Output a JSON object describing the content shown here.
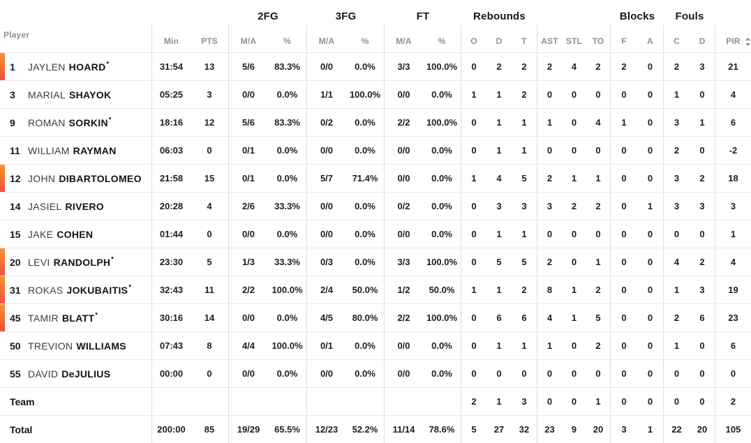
{
  "accent": {
    "on_court_bar_top": "#f8932e",
    "on_court_bar_bottom": "#f04f3c"
  },
  "table": {
    "player_header": "Player",
    "groups": [
      {
        "label": "2FG"
      },
      {
        "label": "3FG"
      },
      {
        "label": "FT"
      },
      {
        "label": "Rebounds"
      },
      {
        "label": "Blocks"
      },
      {
        "label": "Fouls"
      }
    ],
    "columns": [
      {
        "key": "min",
        "label": "Min"
      },
      {
        "key": "pts",
        "label": "PTS"
      },
      {
        "key": "fg2-ma",
        "label": "M/A"
      },
      {
        "key": "fg2-pct",
        "label": "%"
      },
      {
        "key": "fg3-ma",
        "label": "M/A"
      },
      {
        "key": "fg3-pct",
        "label": "%"
      },
      {
        "key": "ft-ma",
        "label": "M/A"
      },
      {
        "key": "ft-pct",
        "label": "%"
      },
      {
        "key": "reb-o",
        "label": "O"
      },
      {
        "key": "reb-d",
        "label": "D"
      },
      {
        "key": "reb-t",
        "label": "T"
      },
      {
        "key": "ast",
        "label": "AST"
      },
      {
        "key": "stl",
        "label": "STL"
      },
      {
        "key": "to",
        "label": "TO"
      },
      {
        "key": "blk-f",
        "label": "F"
      },
      {
        "key": "blk-a",
        "label": "A"
      },
      {
        "key": "foul-c",
        "label": "C"
      },
      {
        "key": "foul-d",
        "label": "D"
      },
      {
        "key": "pir",
        "label": "PIR"
      }
    ],
    "pir_sort_icon": "sort-arrows-icon",
    "rows": [
      {
        "num": "1",
        "first": "JAYLEN",
        "last": "HOARD",
        "starter": true,
        "on_court": true,
        "stats": [
          "31:54",
          "13",
          "5/6",
          "83.3%",
          "0/0",
          "0.0%",
          "3/3",
          "100.0%",
          "0",
          "2",
          "2",
          "2",
          "4",
          "2",
          "2",
          "0",
          "2",
          "3",
          "21"
        ]
      },
      {
        "num": "3",
        "first": "MARIAL",
        "last": "SHAYOK",
        "starter": false,
        "on_court": false,
        "stats": [
          "05:25",
          "3",
          "0/0",
          "0.0%",
          "1/1",
          "100.0%",
          "0/0",
          "0.0%",
          "1",
          "1",
          "2",
          "0",
          "0",
          "0",
          "0",
          "0",
          "1",
          "0",
          "4"
        ]
      },
      {
        "num": "9",
        "first": "ROMAN",
        "last": "SORKIN",
        "starter": true,
        "on_court": false,
        "stats": [
          "18:16",
          "12",
          "5/6",
          "83.3%",
          "0/2",
          "0.0%",
          "2/2",
          "100.0%",
          "0",
          "1",
          "1",
          "1",
          "0",
          "4",
          "1",
          "0",
          "3",
          "1",
          "6"
        ]
      },
      {
        "num": "11",
        "first": "WILLIAM",
        "last": "RAYMAN",
        "starter": false,
        "on_court": false,
        "stats": [
          "06:03",
          "0",
          "0/1",
          "0.0%",
          "0/0",
          "0.0%",
          "0/0",
          "0.0%",
          "0",
          "1",
          "1",
          "0",
          "0",
          "0",
          "0",
          "0",
          "2",
          "0",
          "-2"
        ]
      },
      {
        "num": "12",
        "first": "JOHN",
        "last": "DIBARTOLOMEO",
        "starter": false,
        "on_court": true,
        "stats": [
          "21:58",
          "15",
          "0/1",
          "0.0%",
          "5/7",
          "71.4%",
          "0/0",
          "0.0%",
          "1",
          "4",
          "5",
          "2",
          "1",
          "1",
          "0",
          "0",
          "3",
          "2",
          "18"
        ]
      },
      {
        "num": "14",
        "first": "JASIEL",
        "last": "RIVERO",
        "starter": false,
        "on_court": false,
        "stats": [
          "20:28",
          "4",
          "2/6",
          "33.3%",
          "0/0",
          "0.0%",
          "0/2",
          "0.0%",
          "0",
          "3",
          "3",
          "3",
          "2",
          "2",
          "0",
          "1",
          "3",
          "3",
          "3"
        ]
      },
      {
        "num": "15",
        "first": "JAKE",
        "last": "COHEN",
        "starter": false,
        "on_court": false,
        "stats": [
          "01:44",
          "0",
          "0/0",
          "0.0%",
          "0/0",
          "0.0%",
          "0/0",
          "0.0%",
          "0",
          "1",
          "1",
          "0",
          "0",
          "0",
          "0",
          "0",
          "0",
          "0",
          "1"
        ]
      },
      {
        "num": "20",
        "first": "LEVI",
        "last": "RANDOLPH",
        "starter": true,
        "on_court": true,
        "stats": [
          "23:30",
          "5",
          "1/3",
          "33.3%",
          "0/3",
          "0.0%",
          "3/3",
          "100.0%",
          "0",
          "5",
          "5",
          "2",
          "0",
          "1",
          "0",
          "0",
          "4",
          "2",
          "4"
        ]
      },
      {
        "num": "31",
        "first": "ROKAS",
        "last": "JOKUBAITIS",
        "starter": true,
        "on_court": true,
        "stats": [
          "32:43",
          "11",
          "2/2",
          "100.0%",
          "2/4",
          "50.0%",
          "1/2",
          "50.0%",
          "1",
          "1",
          "2",
          "8",
          "1",
          "2",
          "0",
          "0",
          "1",
          "3",
          "19"
        ]
      },
      {
        "num": "45",
        "first": "TAMIR",
        "last": "BLATT",
        "starter": true,
        "on_court": true,
        "stats": [
          "30:16",
          "14",
          "0/0",
          "0.0%",
          "4/5",
          "80.0%",
          "2/2",
          "100.0%",
          "0",
          "6",
          "6",
          "4",
          "1",
          "5",
          "0",
          "0",
          "2",
          "6",
          "23"
        ]
      },
      {
        "num": "50",
        "first": "TREVION",
        "last": "WILLIAMS",
        "starter": false,
        "on_court": false,
        "stats": [
          "07:43",
          "8",
          "4/4",
          "100.0%",
          "0/1",
          "0.0%",
          "0/0",
          "0.0%",
          "0",
          "1",
          "1",
          "1",
          "0",
          "2",
          "0",
          "0",
          "1",
          "0",
          "6"
        ]
      },
      {
        "num": "55",
        "first": "DAVID",
        "last": "DeJULIUS",
        "starter": false,
        "on_court": false,
        "stats": [
          "00:00",
          "0",
          "0/0",
          "0.0%",
          "0/0",
          "0.0%",
          "0/0",
          "0.0%",
          "0",
          "0",
          "0",
          "0",
          "0",
          "0",
          "0",
          "0",
          "0",
          "0",
          "0"
        ]
      },
      {
        "label": "Team",
        "stats": [
          "",
          "",
          "",
          "",
          "",
          "",
          "",
          "",
          "2",
          "1",
          "3",
          "0",
          "0",
          "1",
          "0",
          "0",
          "0",
          "0",
          "2"
        ]
      },
      {
        "label": "Total",
        "stats": [
          "200:00",
          "85",
          "19/29",
          "65.5%",
          "12/23",
          "52.2%",
          "11/14",
          "78.6%",
          "5",
          "27",
          "32",
          "23",
          "9",
          "20",
          "3",
          "1",
          "22",
          "20",
          "105"
        ]
      }
    ]
  }
}
